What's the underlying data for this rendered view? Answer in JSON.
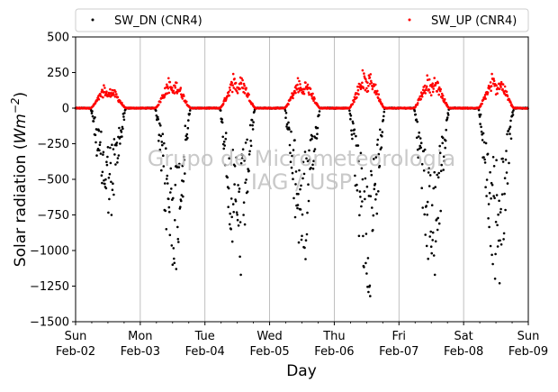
{
  "chart_data": {
    "type": "scatter",
    "xlabel": "Day",
    "ylabel_prefix": "Solar radiation (",
    "ylabel_unit": "Wm",
    "ylabel_exp": "−2",
    "ylabel_suffix": ")",
    "ylim": [
      -1500,
      500
    ],
    "xlim": [
      "2025-02-02",
      "2025-02-09"
    ],
    "yticks": [
      "500",
      "250",
      "0",
      "−250",
      "−500",
      "−750",
      "−1000",
      "−1250",
      "−1500"
    ],
    "ytick_values": [
      500,
      250,
      0,
      -250,
      -500,
      -750,
      -1000,
      -1250,
      -1500
    ],
    "xticks": [
      {
        "day": "Sun",
        "date": "Feb-02"
      },
      {
        "day": "Mon",
        "date": "Feb-03"
      },
      {
        "day": "Tue",
        "date": "Feb-04"
      },
      {
        "day": "Wed",
        "date": "Feb-05"
      },
      {
        "day": "Thu",
        "date": "Feb-06"
      },
      {
        "day": "Fri",
        "date": "Feb-07"
      },
      {
        "day": "Sat",
        "date": "Feb-08"
      },
      {
        "day": "Sun",
        "date": "Feb-09"
      }
    ],
    "grid": "vertical-at-day",
    "legend_placement": "top, outside plot, two columns",
    "watermark": [
      "Grupo de Micrometeorologia",
      "IAG / USP"
    ],
    "series": [
      {
        "name": "SW_DN (CNR4)",
        "color": "#000000",
        "daily_min": [
          -750,
          -1130,
          -1170,
          -1060,
          -1320,
          -1170,
          -1230
        ]
      },
      {
        "name": "SW_UP (CNR4)",
        "color": "#ff0000",
        "daily_max": [
          160,
          210,
          240,
          210,
          265,
          230,
          240
        ]
      }
    ]
  }
}
